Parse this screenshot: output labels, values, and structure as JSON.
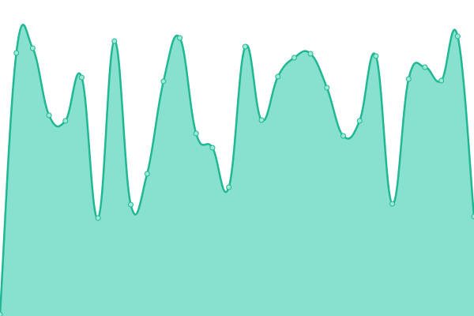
{
  "chart_data": {
    "type": "area",
    "categories": [
      null,
      null,
      null,
      null,
      null,
      null,
      null,
      null,
      null,
      null,
      null,
      null,
      null,
      null,
      null,
      null,
      null,
      null,
      null,
      null,
      null,
      null,
      null,
      null,
      null,
      null,
      null,
      null,
      null,
      null
    ],
    "values": [
      2,
      333,
      339,
      254,
      247,
      302,
      124,
      348,
      141,
      180,
      297,
      352,
      231,
      213,
      163,
      341,
      248,
      303,
      327,
      332,
      289,
      228,
      247,
      329,
      142,
      300,
      315,
      298,
      354,
      126
    ],
    "ylim": [
      0,
      400
    ],
    "color": "#1fb893",
    "fill": "#88e0cf",
    "point_color": "#9ee8d6"
  }
}
